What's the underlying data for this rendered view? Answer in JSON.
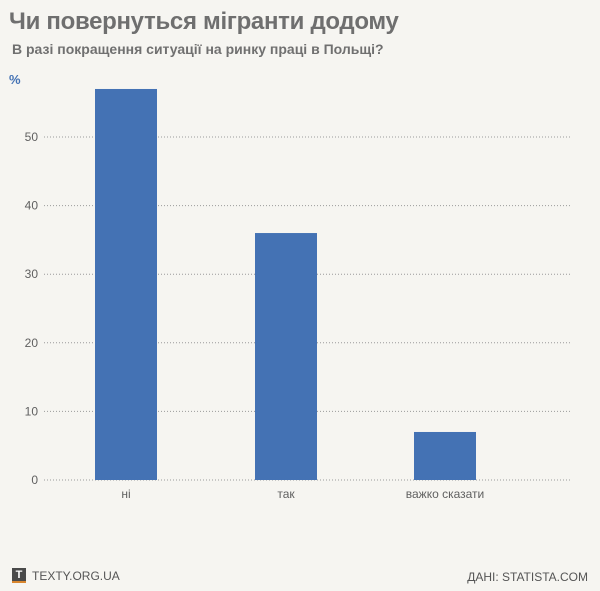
{
  "chart_data": {
    "type": "bar",
    "title": "Чи повернуться мігранти додому",
    "subtitle": "В разі покращення ситуації на ринку праці в Польщі?",
    "ylabel": "%",
    "xlabel": "",
    "categories": [
      "ні",
      "так",
      "важко сказати"
    ],
    "values": [
      57,
      36,
      7
    ],
    "ylim": [
      0,
      55
    ],
    "yticks": [
      0,
      10,
      20,
      30,
      40,
      50
    ],
    "grid": true,
    "bar_color": "#4472b4"
  },
  "footer": {
    "logo_letter": "T",
    "site": "TEXTY.ORG.UA",
    "source": "ДАНІ: STATISTA.COM"
  }
}
